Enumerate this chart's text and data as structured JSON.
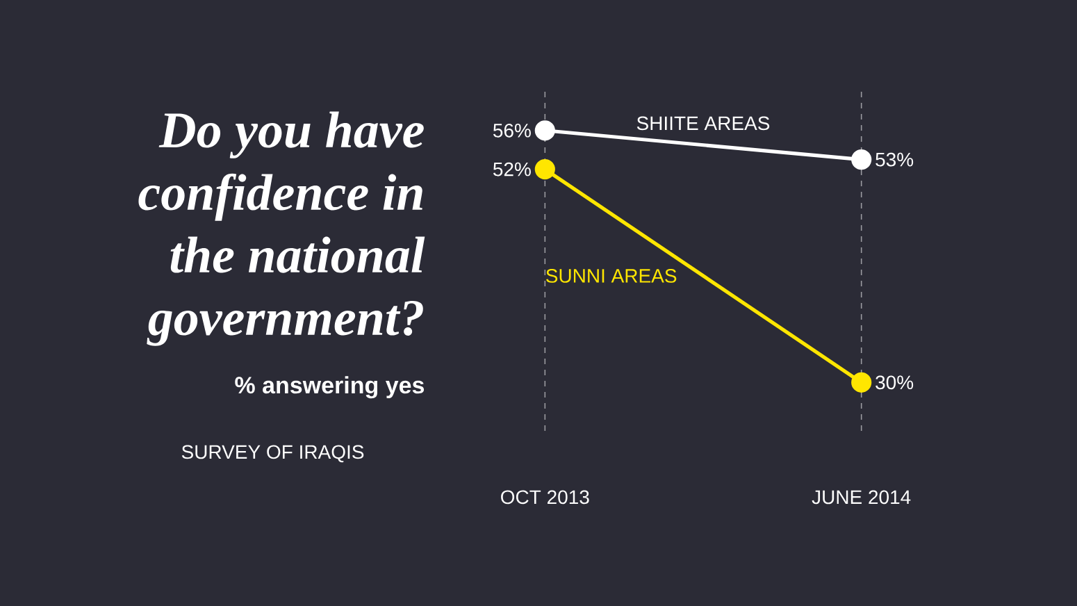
{
  "chart_data": {
    "type": "line",
    "title": "Do you have confidence in the national government?",
    "subtitle": "% answering yes",
    "annotations": [
      "SURVEY OF IRAQIS"
    ],
    "categories": [
      "OCT 2013",
      "JUNE 2014"
    ],
    "series": [
      {
        "name": "SHIITE AREAS",
        "color": "#ffffff",
        "values": [
          56,
          53
        ],
        "value_labels": [
          "56%",
          "53%"
        ]
      },
      {
        "name": "SUNNI AREAS",
        "color": "#ffe600",
        "values": [
          52,
          30
        ],
        "value_labels": [
          "52%",
          "30%"
        ]
      }
    ],
    "ylim": [
      25,
      60
    ],
    "tick_labels": "x",
    "grid": "x",
    "marker": "circle",
    "line_style": "solid",
    "legend": false
  }
}
